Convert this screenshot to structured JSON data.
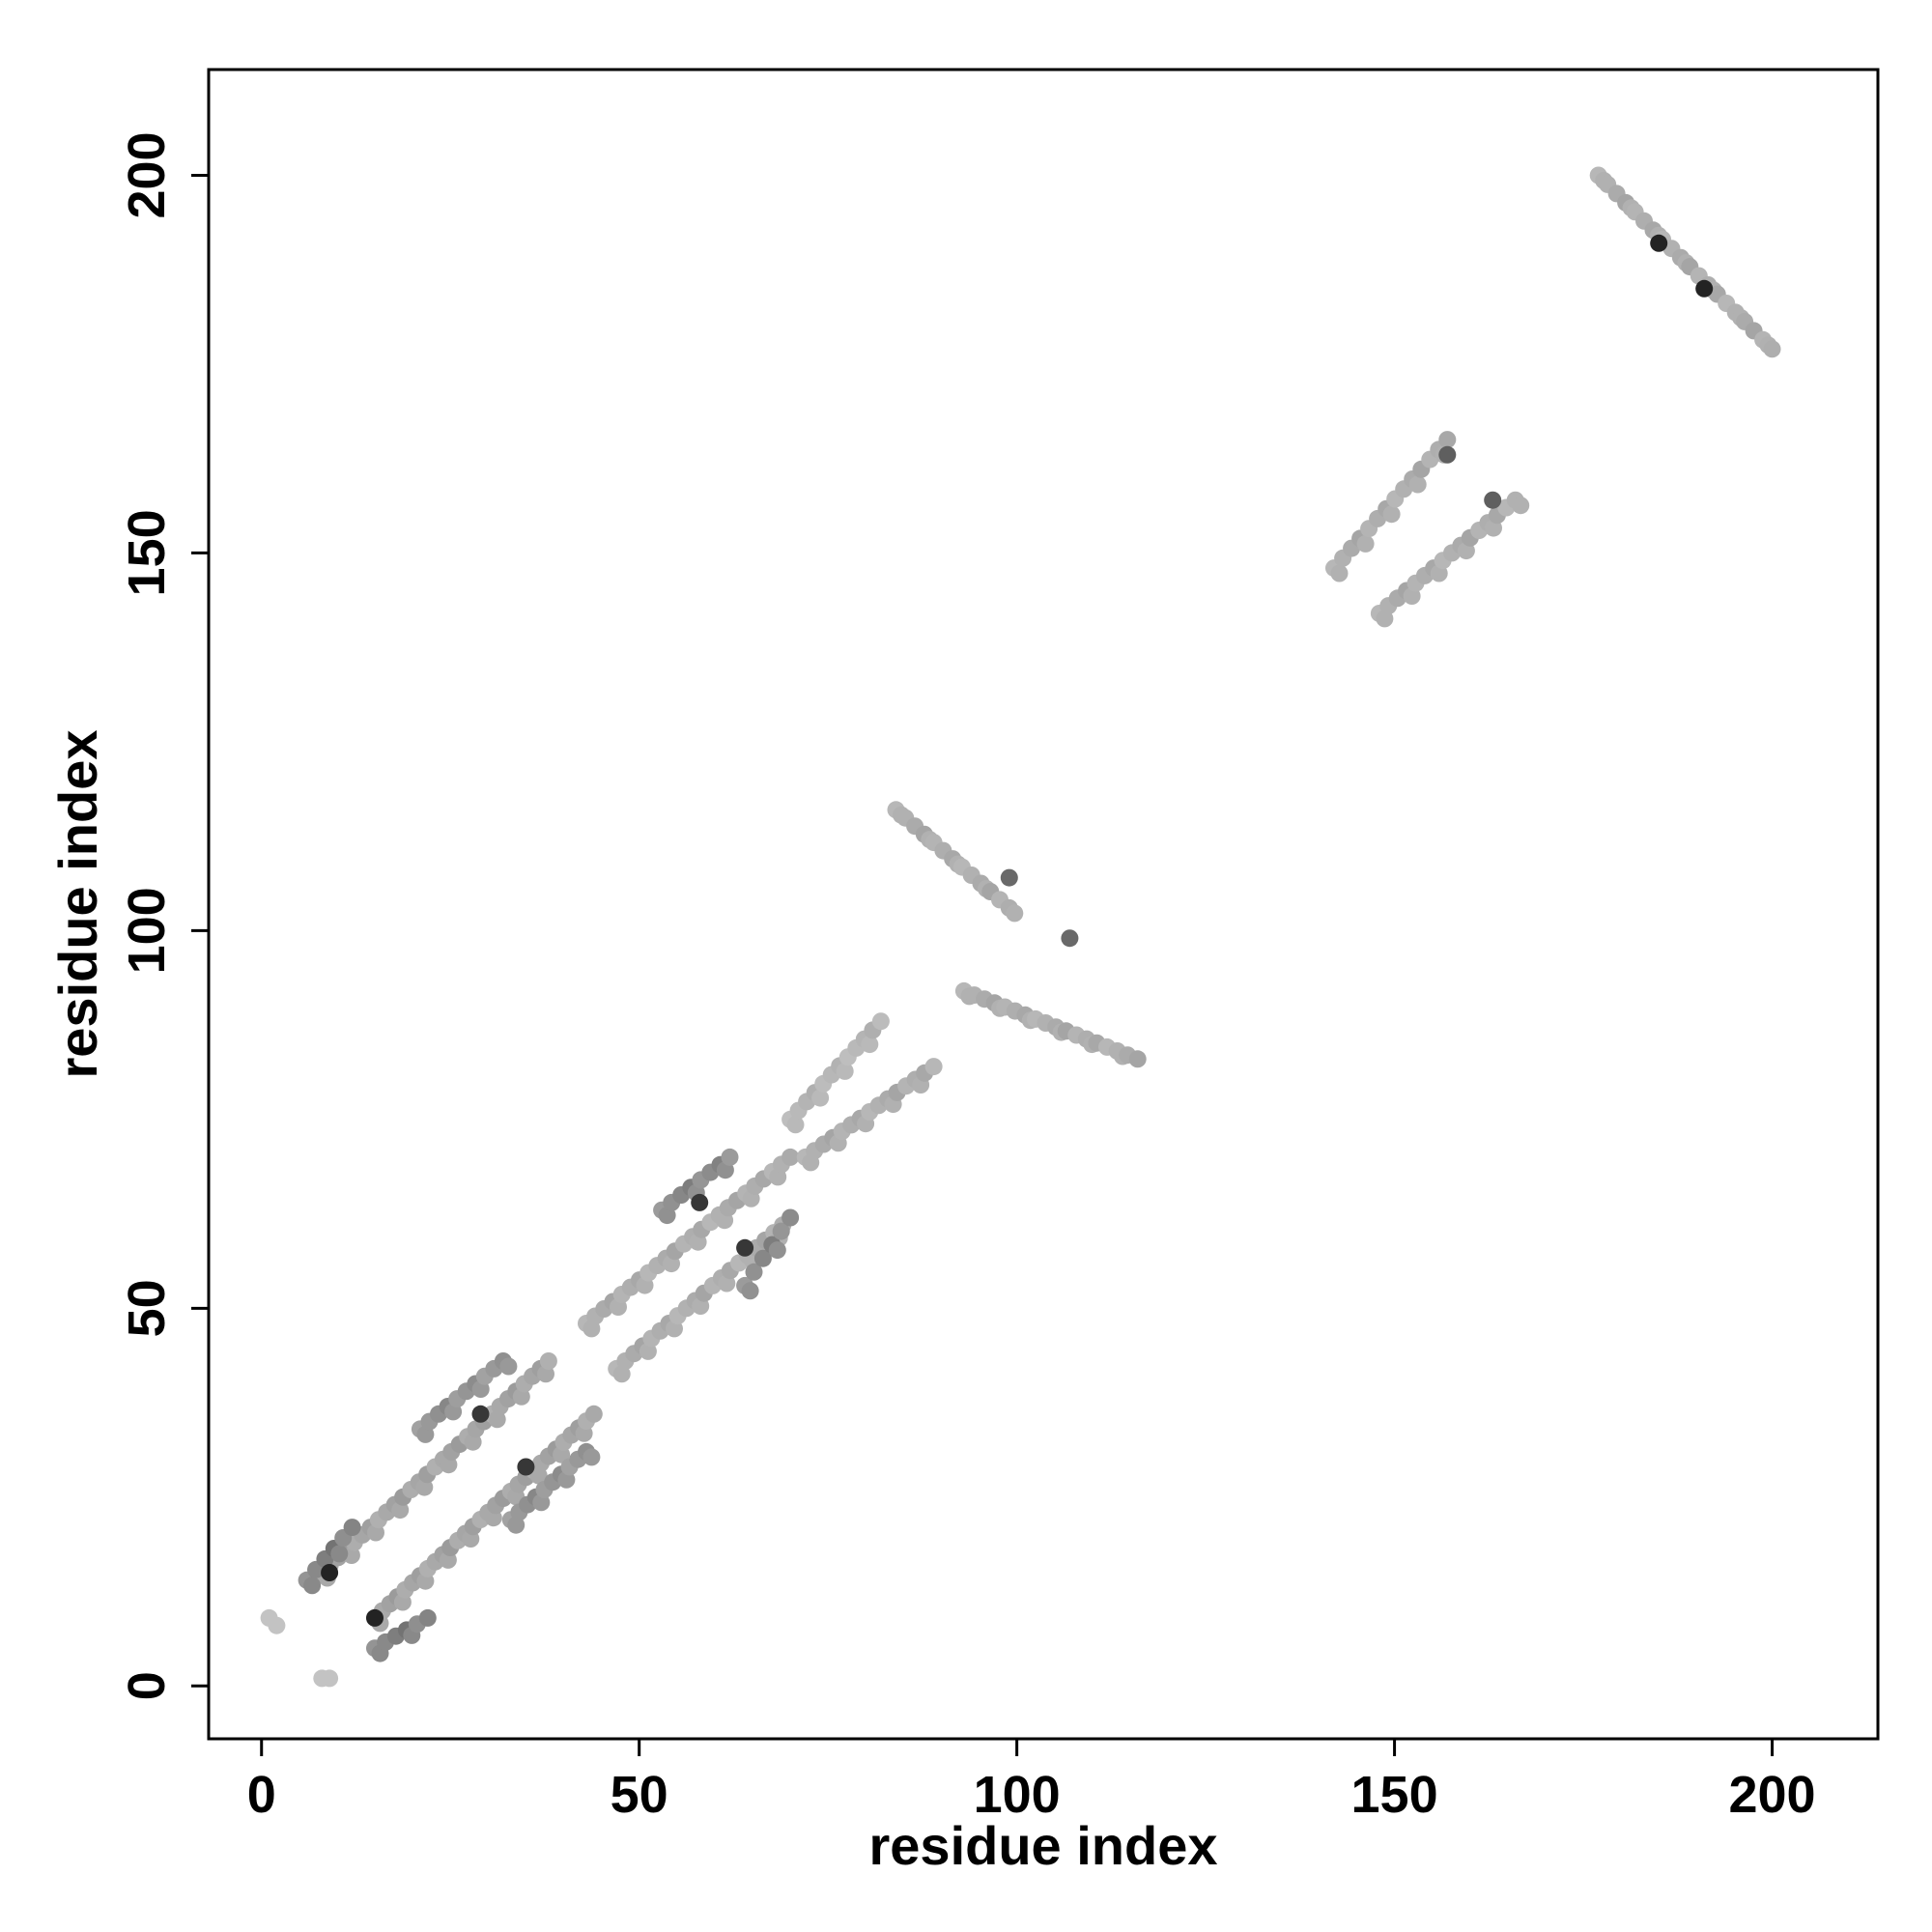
{
  "chart_data": {
    "type": "scatter",
    "title": "",
    "xlabel": "residue index",
    "ylabel": "residue index",
    "xlim": [
      -7,
      214
    ],
    "ylim": [
      -7,
      214
    ],
    "xticks": [
      "0",
      "50",
      "100",
      "150",
      "200"
    ],
    "yticks": [
      "0",
      "50",
      "100",
      "150",
      "200"
    ],
    "grid": false,
    "legend": "none",
    "point_color_scale": "light-gray to black by contact density",
    "segments": [
      {
        "from": [
          8,
          15
        ],
        "to": [
          38,
          43
        ],
        "count": 29,
        "level": 0.35
      },
      {
        "from": [
          15,
          9
        ],
        "to": [
          44,
          36
        ],
        "count": 30,
        "level": 0.35
      },
      {
        "from": [
          6,
          14
        ],
        "to": [
          12,
          21
        ],
        "count": 6,
        "level": 0.55
      },
      {
        "from": [
          15,
          5
        ],
        "to": [
          22,
          9
        ],
        "count": 6,
        "level": 0.55
      },
      {
        "from": [
          21,
          34
        ],
        "to": [
          32,
          43
        ],
        "count": 10,
        "level": 0.45
      },
      {
        "from": [
          33,
          22
        ],
        "to": [
          43,
          31
        ],
        "count": 10,
        "level": 0.45
      },
      {
        "from": [
          43,
          48
        ],
        "to": [
          70,
          70
        ],
        "count": 24,
        "level": 0.3
      },
      {
        "from": [
          47,
          42
        ],
        "to": [
          69,
          61
        ],
        "count": 20,
        "level": 0.3
      },
      {
        "from": [
          53,
          63
        ],
        "to": [
          62,
          70
        ],
        "count": 8,
        "level": 0.5
      },
      {
        "from": [
          64,
          53
        ],
        "to": [
          70,
          62
        ],
        "count": 6,
        "level": 0.5
      },
      {
        "from": [
          70,
          75
        ],
        "to": [
          82,
          88
        ],
        "count": 12,
        "level": 0.25
      },
      {
        "from": [
          72,
          70
        ],
        "to": [
          89,
          82
        ],
        "count": 15,
        "level": 0.3
      },
      {
        "from": [
          84,
          116
        ],
        "to": [
          99,
          103
        ],
        "count": 13,
        "level": 0.3
      },
      {
        "from": [
          93,
          92
        ],
        "to": [
          116,
          83
        ],
        "count": 18,
        "level": 0.3
      },
      {
        "from": [
          142,
          148
        ],
        "to": [
          157,
          165
        ],
        "count": 14,
        "level": 0.3
      },
      {
        "from": [
          148,
          142
        ],
        "to": [
          166,
          157
        ],
        "count": 16,
        "level": 0.3
      },
      {
        "from": [
          177,
          200
        ],
        "to": [
          200,
          177
        ],
        "count": 20,
        "level": 0.3
      }
    ],
    "hotspots": [
      {
        "x": 9,
        "y": 15,
        "level": 0.95
      },
      {
        "x": 15,
        "y": 9,
        "level": 0.95
      },
      {
        "x": 29,
        "y": 36,
        "level": 0.85
      },
      {
        "x": 35,
        "y": 29,
        "level": 0.85
      },
      {
        "x": 58,
        "y": 64,
        "level": 0.85
      },
      {
        "x": 64,
        "y": 58,
        "level": 0.85
      },
      {
        "x": 99,
        "y": 107,
        "level": 0.6
      },
      {
        "x": 107,
        "y": 99,
        "level": 0.6
      },
      {
        "x": 157,
        "y": 163,
        "level": 0.65
      },
      {
        "x": 163,
        "y": 157,
        "level": 0.65
      },
      {
        "x": 185,
        "y": 191,
        "level": 0.95
      },
      {
        "x": 191,
        "y": 185,
        "level": 0.95
      },
      {
        "x": 2,
        "y": 8,
        "level": 0.15
      },
      {
        "x": 8,
        "y": 1,
        "level": 0.15
      },
      {
        "x": 9,
        "y": 1,
        "level": 0.15
      },
      {
        "x": 1,
        "y": 9,
        "level": 0.15
      }
    ]
  }
}
